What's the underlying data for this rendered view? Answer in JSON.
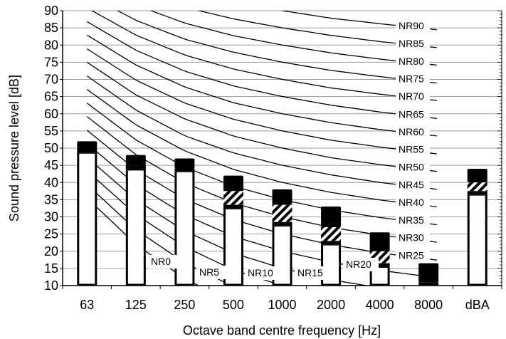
{
  "chart_data": {
    "type": "bar",
    "xlabel": "Octave band centre frequency [Hz]",
    "ylabel": "Sound pressure level [dB]",
    "ylim": [
      10,
      90
    ],
    "ytick_step": 5,
    "categories": [
      "63",
      "125",
      "250",
      "500",
      "1000",
      "2000",
      "4000",
      "8000",
      "dBA"
    ],
    "bar_layers": {
      "white": [
        48.7,
        43.8,
        43.3,
        32.5,
        27.5,
        22.0,
        15.5,
        10.2,
        36.5
      ],
      "black_band_top": [
        50.0,
        45.0,
        44.0,
        33.5,
        28.5,
        23.0,
        16.5,
        11.0,
        37.5
      ],
      "hatched_top": [
        50.0,
        45.0,
        44.0,
        37.5,
        33.5,
        27.0,
        20.0,
        11.0,
        40.0
      ],
      "total": [
        52.0,
        48.0,
        47.0,
        42.0,
        38.0,
        33.0,
        25.5,
        16.5,
        44.0
      ]
    },
    "nr_frequencies": [
      63,
      125,
      250,
      500,
      1000,
      2000,
      4000,
      8000
    ],
    "nr_curves": [
      {
        "name": "NR0",
        "values": [
          35.5,
          22.0,
          12.0,
          4.8,
          0.0,
          -3.5,
          -6.1,
          -8.0
        ]
      },
      {
        "name": "NR5",
        "values": [
          39.4,
          26.3,
          16.6,
          9.7,
          5.0,
          1.6,
          -1.0,
          -2.8
        ]
      },
      {
        "name": "NR10",
        "values": [
          43.4,
          30.7,
          21.3,
          14.5,
          10.0,
          6.6,
          4.2,
          2.3
        ]
      },
      {
        "name": "NR15",
        "values": [
          47.3,
          35.0,
          25.9,
          19.4,
          15.0,
          11.7,
          9.3,
          7.4
        ]
      },
      {
        "name": "NR20",
        "values": [
          51.3,
          39.4,
          30.6,
          24.3,
          20.0,
          16.8,
          14.4,
          12.6
        ]
      },
      {
        "name": "NR25",
        "values": [
          55.2,
          43.7,
          35.2,
          29.2,
          25.0,
          21.9,
          19.5,
          17.7
        ]
      },
      {
        "name": "NR30",
        "values": [
          59.2,
          48.1,
          39.9,
          34.0,
          30.0,
          26.9,
          24.7,
          22.9
        ]
      },
      {
        "name": "NR35",
        "values": [
          63.1,
          52.4,
          44.5,
          38.9,
          35.0,
          32.0,
          29.8,
          28.0
        ]
      },
      {
        "name": "NR40",
        "values": [
          67.1,
          56.8,
          49.2,
          43.8,
          40.0,
          37.1,
          34.9,
          33.2
        ]
      },
      {
        "name": "NR45",
        "values": [
          71.0,
          61.1,
          53.6,
          48.6,
          45.0,
          42.2,
          40.0,
          38.3
        ]
      },
      {
        "name": "NR50",
        "values": [
          75.0,
          65.5,
          58.5,
          53.5,
          50.0,
          47.2,
          45.2,
          43.5
        ]
      },
      {
        "name": "NR55",
        "values": [
          78.9,
          69.8,
          63.1,
          58.4,
          55.0,
          52.3,
          50.3,
          48.6
        ]
      },
      {
        "name": "NR60",
        "values": [
          82.9,
          74.2,
          67.8,
          63.2,
          60.0,
          57.4,
          55.4,
          53.8
        ]
      },
      {
        "name": "NR65",
        "values": [
          86.8,
          78.5,
          72.4,
          68.1,
          65.0,
          62.5,
          60.5,
          58.9
        ]
      },
      {
        "name": "NR70",
        "values": [
          90.8,
          82.9,
          77.1,
          73.0,
          70.0,
          67.5,
          65.7,
          64.1
        ]
      },
      {
        "name": "NR75",
        "values": [
          94.7,
          87.2,
          81.7,
          77.9,
          75.0,
          72.6,
          70.8,
          69.2
        ]
      },
      {
        "name": "NR80",
        "values": [
          98.7,
          91.6,
          86.4,
          82.7,
          80.0,
          77.7,
          75.9,
          74.4
        ]
      },
      {
        "name": "NR85",
        "values": [
          102.6,
          95.9,
          91.0,
          87.6,
          85.0,
          82.8,
          81.0,
          79.5
        ]
      },
      {
        "name": "NR90",
        "values": [
          106.6,
          100.3,
          95.7,
          92.5,
          90.0,
          87.8,
          86.2,
          84.7
        ]
      }
    ],
    "nr_labels": {
      "right": [
        "NR25",
        "NR30",
        "NR35",
        "NR40",
        "NR45",
        "NR50",
        "NR55",
        "NR60",
        "NR65",
        "NR70",
        "NR75",
        "NR80",
        "NR85",
        "NR90"
      ],
      "bottom": [
        "NR0",
        "NR5",
        "NR10",
        "NR15",
        "NR20"
      ]
    },
    "grid": "horizontal"
  }
}
